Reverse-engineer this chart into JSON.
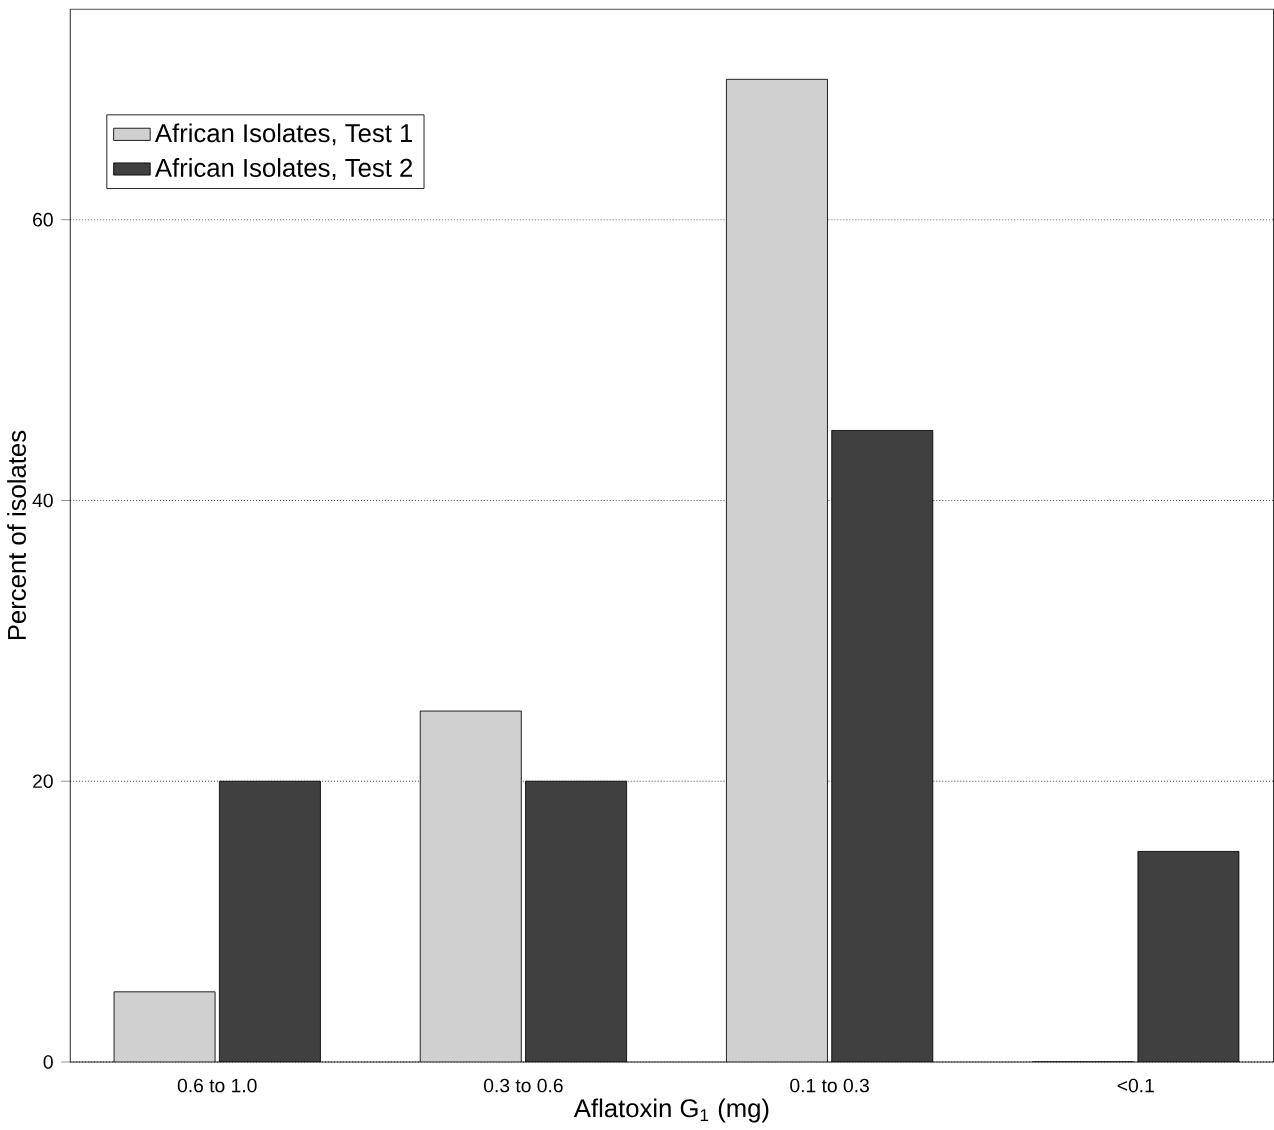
{
  "chart_data": {
    "type": "bar",
    "xlabel": "Aflatoxin G$_{1}$ (mg)",
    "ylabel": "Percent of isolates",
    "categories": [
      "0.6 to 1.0",
      "0.3 to 0.6",
      "0.1 to 0.3",
      "<0.1"
    ],
    "series": [
      {
        "name": "African Isolates, Test 1",
        "color": "#d0d0d0",
        "values": [
          5,
          25,
          70,
          0
        ]
      },
      {
        "name": "African Isolates, Test 2",
        "color": "#404040",
        "values": [
          20,
          20,
          45,
          15
        ]
      }
    ],
    "ylim": [
      0,
      75
    ],
    "yticks": [
      0,
      20,
      40,
      60
    ],
    "grid": "y",
    "legend": "top left"
  }
}
